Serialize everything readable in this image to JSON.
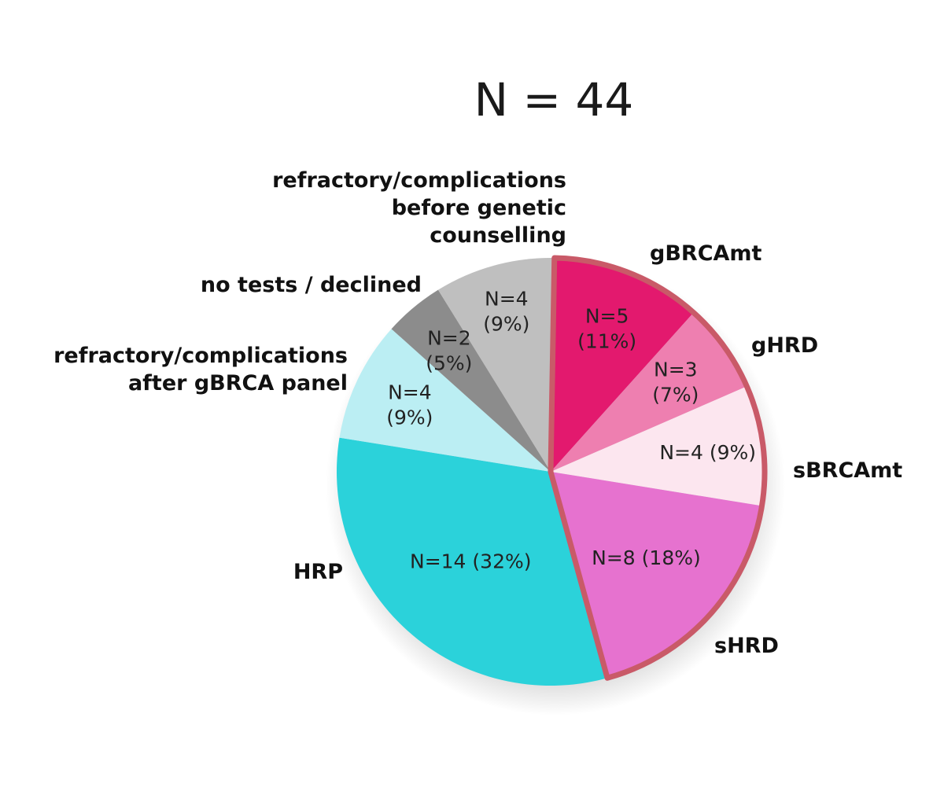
{
  "chart_data": {
    "type": "pie",
    "title": "N = 44",
    "total": 44,
    "start_angle_deg": 1,
    "slices": [
      {
        "name": "gBRCAmt",
        "value": 5,
        "value_label": [
          "N=5",
          "(11%)"
        ],
        "color": "#e3196e",
        "highlighted": true
      },
      {
        "name": "gHRD",
        "value": 3,
        "value_label": [
          "N=3",
          "(7%)"
        ],
        "color": "#ee7fb0",
        "highlighted": true
      },
      {
        "name": "sBRCAmt",
        "value": 4,
        "value_label": [
          "N=4 (9%)"
        ],
        "color": "#fce6ef",
        "highlighted": true
      },
      {
        "name": "sHRD",
        "value": 8,
        "value_label": [
          "N=8 (18%)"
        ],
        "color": "#e672cf",
        "highlighted": true
      },
      {
        "name": "HRP",
        "value": 14,
        "value_label": [
          "N=14 (32%)"
        ],
        "color": "#2bd2da",
        "highlighted": false
      },
      {
        "name": "refractory/complications after gBRCA panel",
        "name_lines": [
          "refractory/complications",
          "after gBRCA panel"
        ],
        "value": 4,
        "value_label": [
          "N=4",
          "(9%)"
        ],
        "color": "#bbeef3",
        "highlighted": false
      },
      {
        "name": "no tests / declined",
        "value": 2,
        "value_label": [
          "N=2",
          "(5%)"
        ],
        "color": "#8c8c8c",
        "highlighted": false
      },
      {
        "name": "refractory/complications before genetic counselling",
        "name_lines": [
          "refractory/complications",
          "before genetic",
          "counselling"
        ],
        "value": 4,
        "value_label": [
          "N=4",
          "(9%)"
        ],
        "color": "#bfbfbf",
        "highlighted": false
      }
    ],
    "highlight_outline_color": "#c95a68",
    "legend": "none"
  }
}
